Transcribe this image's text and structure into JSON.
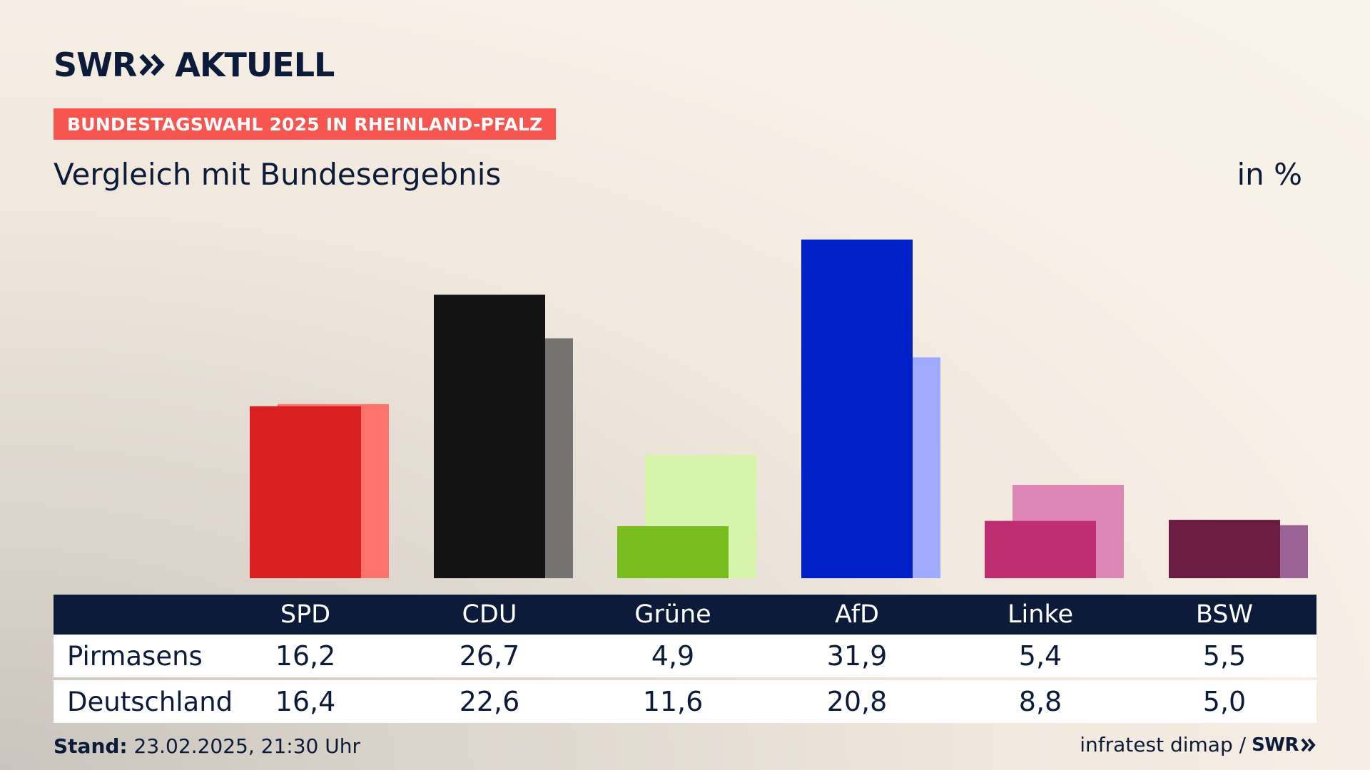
{
  "header": {
    "logo_text": "SWR",
    "logo_suffix": "AKTUELL",
    "badge": "BUNDESTAGSWAHL 2025 IN RHEINLAND-PFALZ",
    "subtitle": "Vergleich mit Bundesergebnis",
    "unit": "in %"
  },
  "footer": {
    "stand_label": "Stand:",
    "stand_value": "23.02.2025, 21:30 Uhr",
    "source": "infratest dimap /",
    "source_logo": "SWR"
  },
  "chart_data": {
    "type": "bar",
    "categories": [
      "SPD",
      "CDU",
      "Grüne",
      "AfD",
      "Linke",
      "BSW"
    ],
    "series": [
      {
        "name": "Pirmasens",
        "values": [
          16.2,
          26.7,
          4.9,
          31.9,
          5.4,
          5.5
        ],
        "labels": [
          "16,2",
          "26,7",
          "4,9",
          "31,9",
          "5,4",
          "5,5"
        ],
        "colors": [
          "#d7201f",
          "#131313",
          "#78bd1d",
          "#0021c8",
          "#bd2f71",
          "#6a1c42"
        ]
      },
      {
        "name": "Deutschland",
        "values": [
          16.4,
          22.6,
          11.6,
          20.8,
          8.8,
          5.0
        ],
        "labels": [
          "16,4",
          "22,6",
          "11,6",
          "20,8",
          "8,8",
          "5,0"
        ],
        "colors": [
          "#fe726c",
          "#757371",
          "#d6f5ab",
          "#9eabfe",
          "#dd87b5",
          "#9c6496"
        ]
      }
    ],
    "ylim": [
      0,
      31.9
    ],
    "grid": false
  }
}
